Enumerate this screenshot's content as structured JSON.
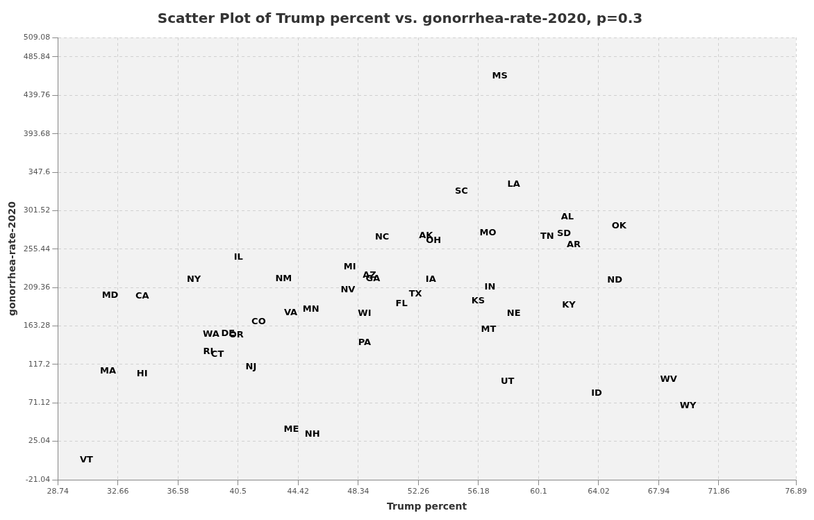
{
  "chart_data": {
    "type": "scatter",
    "title": "Scatter Plot of Trump percent vs. gonorrhea-rate-2020, p=0.3",
    "x_label": "Trump percent",
    "y_label": "gonorrhea-rate-2020",
    "marker": "label",
    "color": "#000000",
    "grid": true,
    "xlim": [
      28.74,
      76.89
    ],
    "xticks": [
      28.74,
      32.66,
      36.58,
      40.5,
      44.42,
      48.34,
      52.26,
      56.18,
      60.1,
      64.02,
      67.94,
      71.86,
      76.89
    ],
    "ylim": [
      -21.04,
      509.08
    ],
    "yticks": [
      -21.04,
      25.04,
      71.12,
      117.2,
      163.28,
      209.36,
      255.44,
      301.52,
      347.6,
      393.68,
      439.76,
      485.84,
      509.08
    ],
    "labels": [
      "MS",
      "LA",
      "SC",
      "AL",
      "OK",
      "NC",
      "AK",
      "OH",
      "MO",
      "TN",
      "SD",
      "AR",
      "IL",
      "NY",
      "NM",
      "MI",
      "AZ",
      "GA",
      "IA",
      "ND",
      "NV",
      "IN",
      "TX",
      "MD",
      "CA",
      "KS",
      "FL",
      "KY",
      "MN",
      "VA",
      "WI",
      "NE",
      "CO",
      "MT",
      "WA",
      "DE",
      "OR",
      "PA",
      "RI",
      "CT",
      "NJ",
      "MA",
      "HI",
      "UT",
      "WV",
      "ID",
      "WY",
      "ME",
      "NH",
      "VT"
    ],
    "x": [
      57.57,
      58.48,
      55.07,
      61.98,
      65.35,
      49.89,
      52.75,
      53.25,
      56.8,
      60.66,
      61.76,
      62.39,
      40.52,
      37.61,
      43.47,
      47.79,
      49.07,
      49.29,
      53.07,
      65.07,
      47.66,
      56.93,
      52.07,
      32.15,
      34.24,
      56.16,
      51.16,
      62.07,
      45.25,
      43.93,
      48.75,
      58.48,
      41.84,
      56.84,
      38.74,
      39.84,
      40.38,
      48.75,
      38.56,
      39.15,
      41.34,
      32.01,
      34.24,
      58.07,
      68.58,
      63.89,
      69.85,
      43.97,
      45.34,
      30.6
    ],
    "values": [
      462.7,
      332.9,
      324.5,
      294.2,
      283.2,
      269.7,
      271.4,
      265.5,
      274.8,
      270.5,
      273.9,
      260.4,
      245.3,
      219.1,
      220.0,
      234.3,
      224.2,
      220.0,
      219.1,
      218.3,
      206.5,
      209.9,
      201.4,
      199.8,
      198.9,
      193.0,
      189.7,
      188.0,
      182.9,
      178.7,
      177.8,
      177.8,
      168.6,
      159.3,
      153.4,
      154.3,
      152.6,
      143.3,
      132.4,
      129.0,
      113.8,
      108.8,
      105.4,
      97.0,
      99.5,
      82.6,
      67.4,
      38.8,
      33.7,
      2.6
    ]
  }
}
